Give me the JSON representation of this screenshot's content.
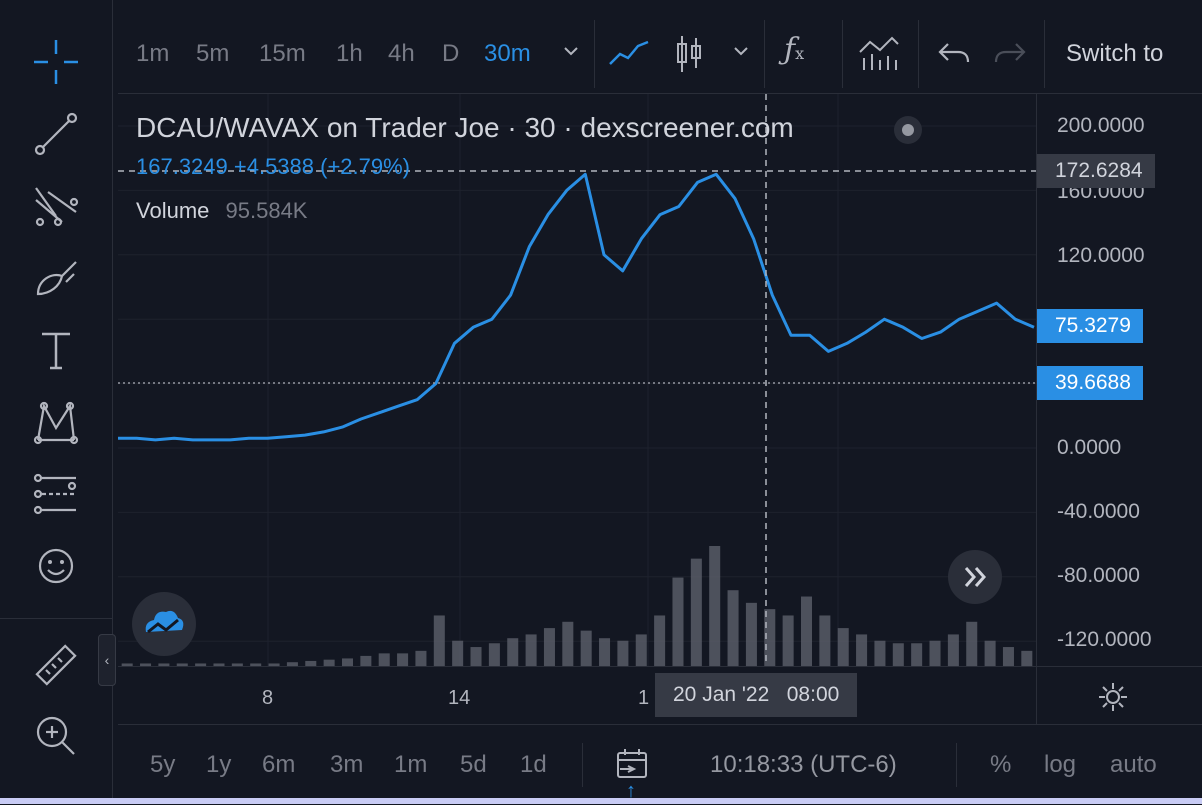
{
  "toolbar": {
    "intervals": [
      "1m",
      "5m",
      "15m",
      "1h",
      "4h",
      "D",
      "30m"
    ],
    "active_interval": "30m",
    "switch_label": "Switch to"
  },
  "legend": {
    "title": "DCAU/WAVAX on Trader Joe · 30 · dexscreener.com",
    "values": "167.3249  +4.5388 (+2.79%)",
    "volume_label": "Volume",
    "volume_value": "95.584K"
  },
  "price_axis": {
    "ticks": [
      "200.0000",
      "160.0000",
      "120.0000",
      "75.3279",
      "39.6688",
      "0.0000",
      "-40.0000",
      "-80.0000",
      "-120.0000"
    ],
    "crosshair_price": "172.6284",
    "last_price": "75.3279",
    "marker_price": "39.6688"
  },
  "time_axis": {
    "ticks": [
      "8",
      "14",
      "1"
    ],
    "crosshair_label": "20 Jan '22   08:00"
  },
  "bottom": {
    "ranges": [
      "5y",
      "1y",
      "6m",
      "3m",
      "1m",
      "5d",
      "1d"
    ],
    "clock": "10:18:33 (UTC-6)",
    "percent": "%",
    "log": "log",
    "auto": "auto"
  },
  "colors": {
    "background": "#131722",
    "line": "#2a8fe4",
    "grid": "#1e222d",
    "text": "#787b86",
    "accent": "#2962ff"
  },
  "chart_data": {
    "type": "line",
    "title": "DCAU/WAVAX on Trader Joe · 30 · dexscreener.com",
    "xlabel": "",
    "ylabel": "",
    "ylim": [
      -140,
      220
    ],
    "x_ticks": [
      "8",
      "14",
      "20 Jan '22"
    ],
    "y_ticks": [
      200,
      160,
      120,
      80,
      40,
      0,
      -40,
      -80,
      -120
    ],
    "series": [
      {
        "values": [
          6,
          6,
          5,
          6,
          5,
          5,
          5,
          6,
          6,
          7,
          8,
          10,
          13,
          18,
          22,
          26,
          30,
          40,
          65,
          75,
          80,
          95,
          125,
          145,
          160,
          170,
          120,
          110,
          130,
          145,
          150,
          165,
          170,
          155,
          130,
          95,
          70,
          70,
          60,
          65,
          72,
          80,
          75,
          68,
          72,
          80,
          85,
          90,
          80,
          75
        ]
      }
    ],
    "volume": [
      2,
      2,
      2,
      2,
      2,
      2,
      2,
      2,
      2,
      3,
      4,
      5,
      6,
      8,
      10,
      10,
      12,
      40,
      20,
      15,
      18,
      22,
      25,
      30,
      35,
      28,
      22,
      20,
      25,
      40,
      70,
      85,
      95,
      60,
      50,
      45,
      40,
      55,
      40,
      30,
      25,
      20,
      18,
      18,
      20,
      25,
      35,
      20,
      15,
      12
    ]
  }
}
